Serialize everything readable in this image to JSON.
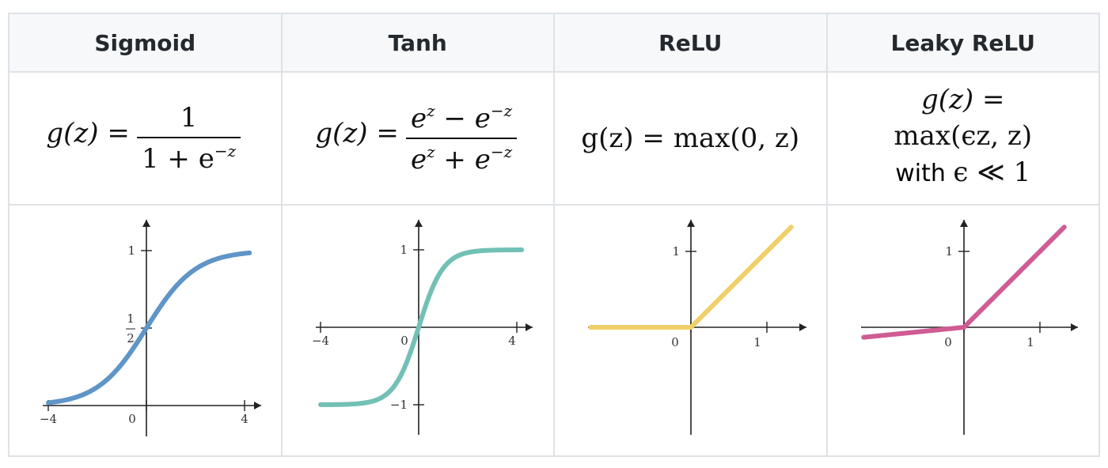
{
  "headers": [
    "Sigmoid",
    "Tanh",
    "ReLU",
    "Leaky ReLU"
  ],
  "formulas": {
    "sigmoid": {
      "lhs": "g(z) =",
      "num": "1",
      "den_a": "1 + e",
      "den_exp": "−z"
    },
    "tanh": {
      "lhs": "g(z) =",
      "num_a": "e",
      "num_a_exp": "z",
      "num_b": " − e",
      "num_b_exp": "−z",
      "den_a": "e",
      "den_a_exp": "z",
      "den_b": " + e",
      "den_b_exp": "−z"
    },
    "relu": {
      "text": "g(z) = max(0, z)"
    },
    "leaky": {
      "line1": "g(z) =",
      "line2": "max(ϵz, z)",
      "line3_a": "with ",
      "line3_b": "ϵ ≪ 1"
    }
  },
  "colors": {
    "sigmoid": "#5f95c8",
    "tanh": "#72c0b6",
    "relu": "#f0cf6b",
    "leaky": "#cf5c94",
    "axis": "#222222",
    "border": "#dfe2e5",
    "header_bg": "#f6f8fa"
  },
  "chart_data": [
    {
      "type": "line",
      "title": "Sigmoid",
      "x_range": [
        -4,
        4
      ],
      "y_range": [
        0,
        1
      ],
      "function": "1/(1+exp(-z))",
      "x_ticks": [
        "−4",
        "0",
        "4"
      ],
      "y_ticks": [
        "1"
      ],
      "y_frac_tick": {
        "num": "1",
        "den": "2"
      }
    },
    {
      "type": "line",
      "title": "Tanh",
      "x_range": [
        -4,
        4
      ],
      "y_range": [
        -1,
        1
      ],
      "function": "tanh(z)",
      "x_ticks": [
        "−4",
        "0",
        "4"
      ],
      "y_ticks": [
        "1",
        "−1"
      ]
    },
    {
      "type": "line",
      "title": "ReLU",
      "x_range": [
        -1.2,
        1.2
      ],
      "y_range": [
        0,
        1.2
      ],
      "function": "max(0,z)",
      "x_ticks": [
        "0",
        "1"
      ],
      "y_ticks": [
        "1"
      ]
    },
    {
      "type": "line",
      "title": "Leaky ReLU",
      "x_range": [
        -1.2,
        1.2
      ],
      "y_range": [
        -0.12,
        1.2
      ],
      "function": "max(0.1z,z)",
      "x_ticks": [
        "0",
        "1"
      ],
      "y_ticks": [
        "1"
      ]
    }
  ]
}
